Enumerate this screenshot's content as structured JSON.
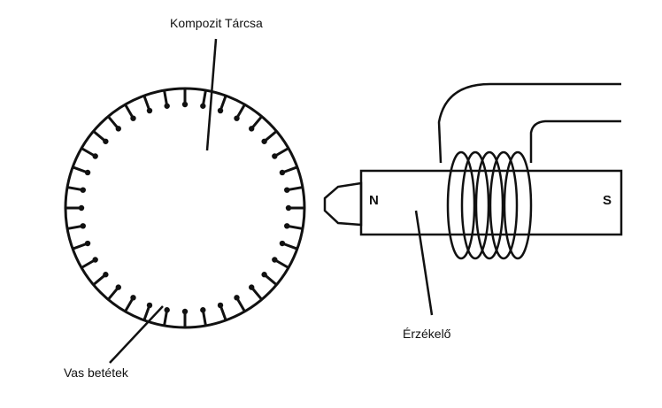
{
  "labels": {
    "disc": "Kompozit Tárcsa",
    "inserts": "Vas betétek",
    "sensor": "Érzékelő",
    "pole_north": "N",
    "pole_south": "S"
  },
  "disc": {
    "insert_count": 36
  },
  "coil": {
    "turns": 5
  },
  "colors": {
    "ink": "#111111",
    "background": "#ffffff"
  }
}
